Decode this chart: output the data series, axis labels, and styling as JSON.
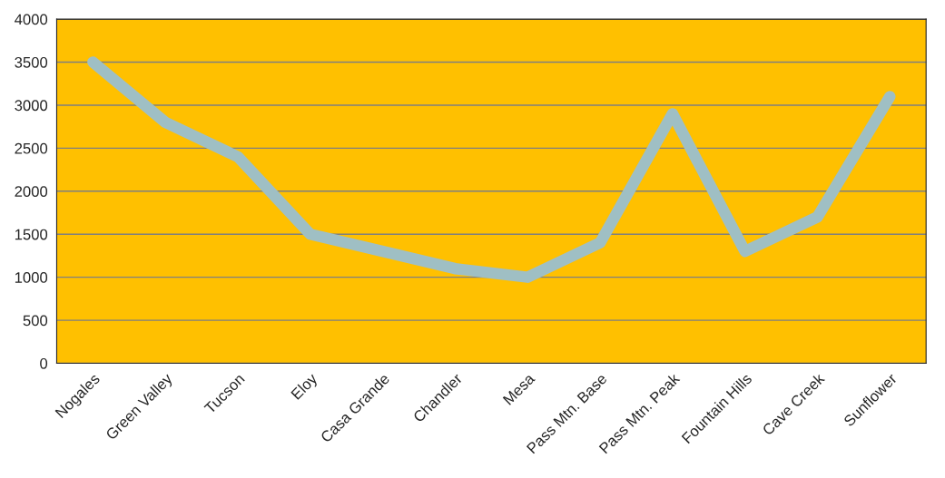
{
  "chart_data": {
    "type": "line",
    "categories": [
      "Nogales",
      "Green Valley",
      "Tucson",
      "Eloy",
      "Casa Grande",
      "Chandler",
      "Mesa",
      "Pass Mtn. Base",
      "Pass Mtn. Peak",
      "Fountain Hills",
      "Cave Creek",
      "Sunflower"
    ],
    "series": [
      {
        "color": "#9fbfc4",
        "values": [
          3500,
          2800,
          2400,
          1500,
          1300,
          1100,
          1000,
          1400,
          2900,
          1300,
          1700,
          3100
        ]
      }
    ],
    "ylim": [
      0,
      4000
    ],
    "yticks": [
      0,
      500,
      1000,
      1500,
      2000,
      2500,
      3000,
      3500,
      4000
    ],
    "grid": "y",
    "marker": "none",
    "line_style": "solid"
  }
}
